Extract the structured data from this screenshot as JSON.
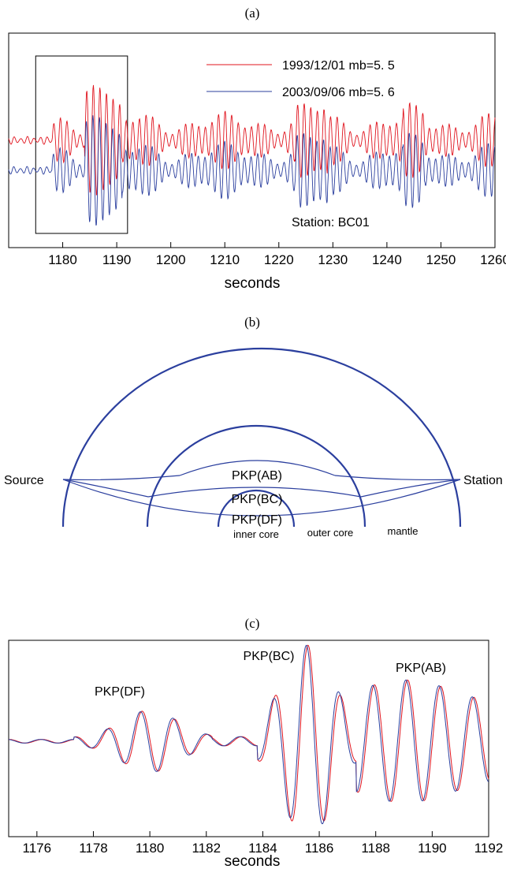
{
  "panels": {
    "a": {
      "label": "(a)",
      "xlabel": "seconds",
      "station": "Station: BC01",
      "legend": [
        {
          "name": "1993/12/01 mb=5. 5",
          "color": "#e0141e"
        },
        {
          "name": "2003/09/06 mb=5. 6",
          "color": "#2b3f9e"
        }
      ]
    },
    "b": {
      "label": "(b)",
      "source": "Source",
      "station": "Station",
      "rays": [
        "PKP(AB)",
        "PKP(BC)",
        "PKP(DF)"
      ],
      "regions": [
        "inner core",
        "outer core",
        "mantle"
      ],
      "color": "#2b3f9e"
    },
    "c": {
      "label": "(c)",
      "xlabel": "seconds",
      "phases": [
        "PKP(DF)",
        "PKP(BC)",
        "PKP(AB)"
      ]
    }
  },
  "chart_data": [
    {
      "type": "line",
      "xlim": [
        1170,
        1260
      ],
      "xticks": [
        1180,
        1190,
        1200,
        1210,
        1220,
        1230,
        1240,
        1250,
        1260
      ],
      "xlabel": "seconds",
      "series": [
        {
          "name": "1993/12/01 mb=5. 5",
          "color": "#e0141e"
        },
        {
          "name": "2003/09/06 mb=5. 6",
          "color": "#2b3f9e"
        }
      ],
      "highlight_window": [
        1175,
        1192
      ],
      "annotation": "Station: BC01",
      "grid": false,
      "legend": "top-right"
    },
    {
      "type": "line",
      "xlim": [
        1175,
        1192
      ],
      "xticks": [
        1176,
        1178,
        1180,
        1182,
        1184,
        1186,
        1188,
        1190,
        1192
      ],
      "xlabel": "seconds",
      "series": [
        {
          "name": "1993/12/01 mb=5. 5",
          "color": "#e0141e"
        },
        {
          "name": "2003/09/06 mb=5. 6",
          "color": "#2b3f9e"
        }
      ],
      "annotations": [
        "PKP(DF)",
        "PKP(BC)",
        "PKP(AB)"
      ],
      "grid": false
    }
  ]
}
